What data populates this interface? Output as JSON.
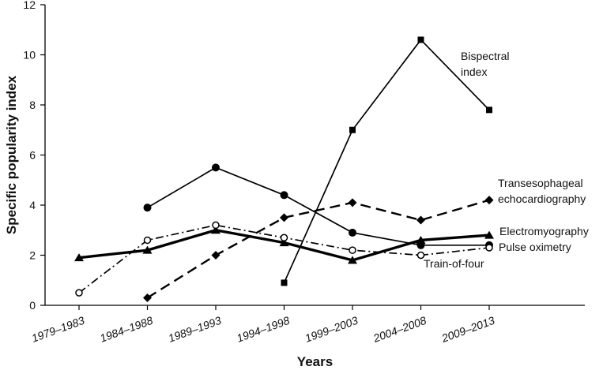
{
  "chart_data": {
    "type": "line",
    "xlabel": "Years",
    "ylabel": "Specific popularity index",
    "categories": [
      "1979–1983",
      "1984–1988",
      "1989–1993",
      "1994–1998",
      "1999–2003",
      "2004–2008",
      "2009–2013"
    ],
    "ylim": [
      0,
      12
    ],
    "yticks": [
      0,
      2,
      4,
      6,
      8,
      10,
      12
    ],
    "grid": false,
    "series": [
      {
        "name": "Bispectral index",
        "label_lines": [
          "Bispectral",
          "index"
        ],
        "values": [
          null,
          null,
          null,
          0.9,
          7.0,
          10.6,
          7.8
        ],
        "line_style": "solid-thin",
        "marker": "square-filled"
      },
      {
        "name": "Transesophageal echocardiography",
        "label_lines": [
          "Transesophageal",
          "echocardiography"
        ],
        "values": [
          null,
          0.3,
          2.0,
          3.5,
          4.1,
          3.4,
          4.2
        ],
        "line_style": "dashed",
        "marker": "diamond-filled"
      },
      {
        "name": "Electromyography",
        "label_lines": [
          "Electromyography"
        ],
        "values": [
          1.9,
          2.2,
          3.0,
          2.5,
          1.8,
          2.6,
          2.8
        ],
        "line_style": "solid-thick",
        "marker": "triangle-filled"
      },
      {
        "name": "Pulse oximetry",
        "label_lines": [
          "Pulse oximetry"
        ],
        "values": [
          null,
          3.9,
          5.5,
          4.4,
          2.9,
          2.4,
          2.4
        ],
        "line_style": "solid-thin",
        "marker": "circle-filled"
      },
      {
        "name": "Train-of-four",
        "label_lines": [
          "Train-of-four"
        ],
        "values": [
          0.5,
          2.6,
          3.2,
          2.7,
          2.2,
          2.0,
          2.3
        ],
        "line_style": "dash-dot",
        "marker": "circle-open"
      }
    ]
  }
}
